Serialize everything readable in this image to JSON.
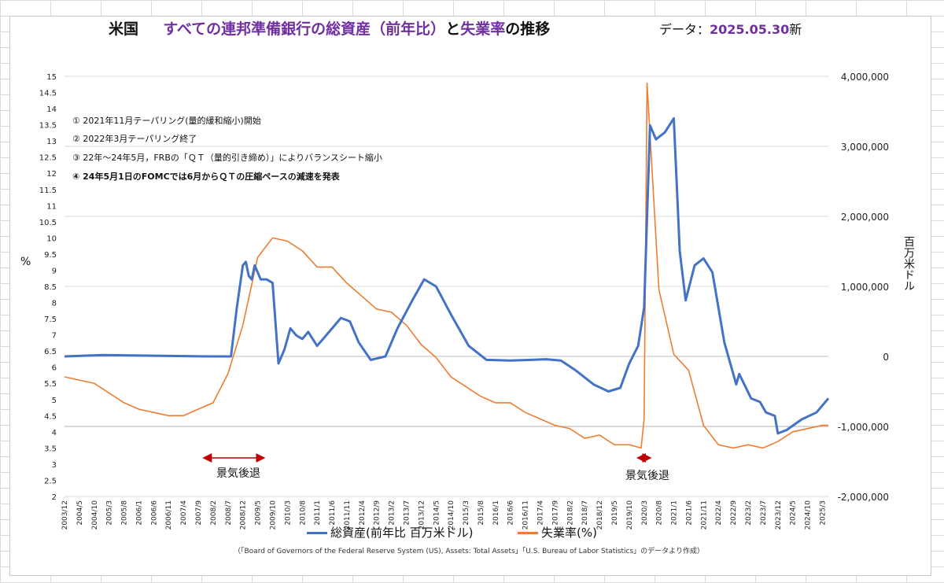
{
  "title": {
    "part1": "米国",
    "part2": "すべての連邦準備銀行の総資産（前年比）",
    "part3": "と",
    "part4": "失業率",
    "part5": "の推移"
  },
  "data_date": {
    "prefix": "データ：",
    "value": "2025.05.30",
    "suffix": "新"
  },
  "notes": [
    "① 2021年11月テーパリング(量的緩和縮小)開始",
    "② 2022年3月テーパリング終了",
    "③ 22年～24年5月，FRBの「ＱＴ（量的引き締め）」によりバランスシート縮小",
    "④ 24年5月1日のFOMCでは6月からＱＴの圧縮ペースの減速を発表"
  ],
  "recession_label": "景気後退",
  "source_text": "（「Board of Governors of the Federal Reserve System (US), Assets: Total Assets」「U.S. Bureau of Labor Statistics」のデータより作成）",
  "colors": {
    "assets": "#4472c4",
    "unemployment": "#ed7d31",
    "recession_arrow": "#c00000",
    "grid": "#d9d9d9"
  },
  "chart_data": {
    "type": "line",
    "title": "米国　すべての連邦準備銀行の総資産（前年比）と失業率の推移",
    "ylabel_left": "%",
    "ylabel_right": "百万米ドル",
    "ylim_left": [
      2,
      15
    ],
    "ylim_right": [
      -2000000,
      4000000
    ],
    "yticks_left": [
      "2",
      "2.5",
      "3",
      "3.5",
      "4",
      "4.5",
      "5",
      "5.5",
      "6",
      "6.5",
      "7",
      "7.5",
      "8",
      "8.5",
      "9",
      "9.5",
      "10",
      "10.5",
      "11",
      "11.5",
      "12",
      "12.5",
      "13",
      "13.5",
      "14",
      "14.5",
      "15"
    ],
    "yticks_right": [
      "-2,000,000",
      "-1,000,000",
      "0",
      "1,000,000",
      "2,000,000",
      "3,000,000",
      "4,000,000"
    ],
    "x_ticks": [
      "2003/12",
      "2004/5",
      "2004/10",
      "2005/3",
      "2005/8",
      "2006/1",
      "2006/6",
      "2006/11",
      "2007/4",
      "2007/9",
      "2008/2",
      "2008/7",
      "2008/12",
      "2009/5",
      "2009/10",
      "2010/3",
      "2010/8",
      "2011/1",
      "2011/6",
      "2011/11",
      "2012/4",
      "2012/9",
      "2013/2",
      "2013/7",
      "2013/12",
      "2014/5",
      "2014/10",
      "2015/3",
      "2015/8",
      "2016/1",
      "2016/6",
      "2016/11",
      "2017/4",
      "2017/9",
      "2018/2",
      "2018/7",
      "2018/12",
      "2019/5",
      "2019/10",
      "2020/3",
      "2020/8",
      "2021/1",
      "2021/6",
      "2021/11",
      "2022/4",
      "2022/9",
      "2023/2",
      "2023/7",
      "2023/12",
      "2024/5",
      "2024/10",
      "2025/3"
    ],
    "x_start": "2003/12",
    "x_end": "2025/5",
    "grid": true,
    "legend_position": "bottom",
    "recessions": [
      [
        "2007/12",
        "2009/6"
      ],
      [
        "2020/2",
        "2020/4"
      ]
    ],
    "series": [
      {
        "name": "総資産(前年比 百万米ドル)",
        "axis": "right",
        "color": "#4472c4",
        "points": [
          [
            "2003/12",
            0
          ],
          [
            "2005/1",
            20000
          ],
          [
            "2006/6",
            10000
          ],
          [
            "2008/1",
            0
          ],
          [
            "2008/8",
            0
          ],
          [
            "2008/10",
            700000
          ],
          [
            "2008/12",
            1300000
          ],
          [
            "2009/1",
            1350000
          ],
          [
            "2009/2",
            1150000
          ],
          [
            "2009/3",
            1100000
          ],
          [
            "2009/4",
            1300000
          ],
          [
            "2009/6",
            1100000
          ],
          [
            "2009/8",
            1100000
          ],
          [
            "2009/10",
            1050000
          ],
          [
            "2009/12",
            -100000
          ],
          [
            "2010/2",
            100000
          ],
          [
            "2010/4",
            400000
          ],
          [
            "2010/6",
            300000
          ],
          [
            "2010/8",
            250000
          ],
          [
            "2010/10",
            350000
          ],
          [
            "2011/1",
            150000
          ],
          [
            "2011/5",
            350000
          ],
          [
            "2011/9",
            550000
          ],
          [
            "2011/12",
            500000
          ],
          [
            "2012/3",
            200000
          ],
          [
            "2012/7",
            -50000
          ],
          [
            "2012/12",
            0
          ],
          [
            "2013/4",
            400000
          ],
          [
            "2013/9",
            800000
          ],
          [
            "2014/1",
            1100000
          ],
          [
            "2014/5",
            1000000
          ],
          [
            "2014/10",
            600000
          ],
          [
            "2015/4",
            150000
          ],
          [
            "2015/10",
            -50000
          ],
          [
            "2016/6",
            -60000
          ],
          [
            "2017/1",
            -50000
          ],
          [
            "2017/6",
            -40000
          ],
          [
            "2017/11",
            -60000
          ],
          [
            "2018/4",
            -200000
          ],
          [
            "2018/10",
            -400000
          ],
          [
            "2019/3",
            -500000
          ],
          [
            "2019/7",
            -450000
          ],
          [
            "2019/10",
            -100000
          ],
          [
            "2020/1",
            150000
          ],
          [
            "2020/3",
            700000
          ],
          [
            "2020/5",
            3300000
          ],
          [
            "2020/7",
            3100000
          ],
          [
            "2020/10",
            3200000
          ],
          [
            "2021/1",
            3400000
          ],
          [
            "2021/3",
            1500000
          ],
          [
            "2021/5",
            800000
          ],
          [
            "2021/8",
            1300000
          ],
          [
            "2021/11",
            1400000
          ],
          [
            "2022/2",
            1200000
          ],
          [
            "2022/6",
            200000
          ],
          [
            "2022/10",
            -400000
          ],
          [
            "2022/11",
            -250000
          ],
          [
            "2023/3",
            -600000
          ],
          [
            "2023/6",
            -650000
          ],
          [
            "2023/8",
            -800000
          ],
          [
            "2023/11",
            -850000
          ],
          [
            "2023/12",
            -1100000
          ],
          [
            "2024/3",
            -1050000
          ],
          [
            "2024/8",
            -900000
          ],
          [
            "2025/1",
            -800000
          ],
          [
            "2025/5",
            -600000
          ]
        ]
      },
      {
        "name": "失業率(%)",
        "axis": "left",
        "color": "#ed7d31",
        "points": [
          [
            "2003/12",
            5.7
          ],
          [
            "2004/5",
            5.6
          ],
          [
            "2004/10",
            5.5
          ],
          [
            "2005/3",
            5.2
          ],
          [
            "2005/8",
            4.9
          ],
          [
            "2006/1",
            4.7
          ],
          [
            "2006/6",
            4.6
          ],
          [
            "2006/11",
            4.5
          ],
          [
            "2007/4",
            4.5
          ],
          [
            "2007/9",
            4.7
          ],
          [
            "2008/2",
            4.9
          ],
          [
            "2008/7",
            5.8
          ],
          [
            "2008/12",
            7.3
          ],
          [
            "2009/5",
            9.4
          ],
          [
            "2009/10",
            10.0
          ],
          [
            "2010/3",
            9.9
          ],
          [
            "2010/8",
            9.6
          ],
          [
            "2011/1",
            9.1
          ],
          [
            "2011/6",
            9.1
          ],
          [
            "2011/11",
            8.6
          ],
          [
            "2012/4",
            8.2
          ],
          [
            "2012/9",
            7.8
          ],
          [
            "2013/2",
            7.7
          ],
          [
            "2013/7",
            7.3
          ],
          [
            "2013/12",
            6.7
          ],
          [
            "2014/5",
            6.3
          ],
          [
            "2014/10",
            5.7
          ],
          [
            "2015/3",
            5.4
          ],
          [
            "2015/8",
            5.1
          ],
          [
            "2016/1",
            4.9
          ],
          [
            "2016/6",
            4.9
          ],
          [
            "2016/11",
            4.6
          ],
          [
            "2017/4",
            4.4
          ],
          [
            "2017/9",
            4.2
          ],
          [
            "2018/2",
            4.1
          ],
          [
            "2018/7",
            3.8
          ],
          [
            "2018/12",
            3.9
          ],
          [
            "2019/5",
            3.6
          ],
          [
            "2019/10",
            3.6
          ],
          [
            "2020/2",
            3.5
          ],
          [
            "2020/3",
            4.4
          ],
          [
            "2020/4",
            14.8
          ],
          [
            "2020/5",
            13.2
          ],
          [
            "2020/8",
            8.4
          ],
          [
            "2021/1",
            6.4
          ],
          [
            "2021/6",
            5.9
          ],
          [
            "2021/11",
            4.2
          ],
          [
            "2022/4",
            3.6
          ],
          [
            "2022/9",
            3.5
          ],
          [
            "2023/2",
            3.6
          ],
          [
            "2023/7",
            3.5
          ],
          [
            "2023/12",
            3.7
          ],
          [
            "2024/5",
            4.0
          ],
          [
            "2024/10",
            4.1
          ],
          [
            "2025/3",
            4.2
          ],
          [
            "2025/5",
            4.2
          ]
        ]
      }
    ]
  }
}
